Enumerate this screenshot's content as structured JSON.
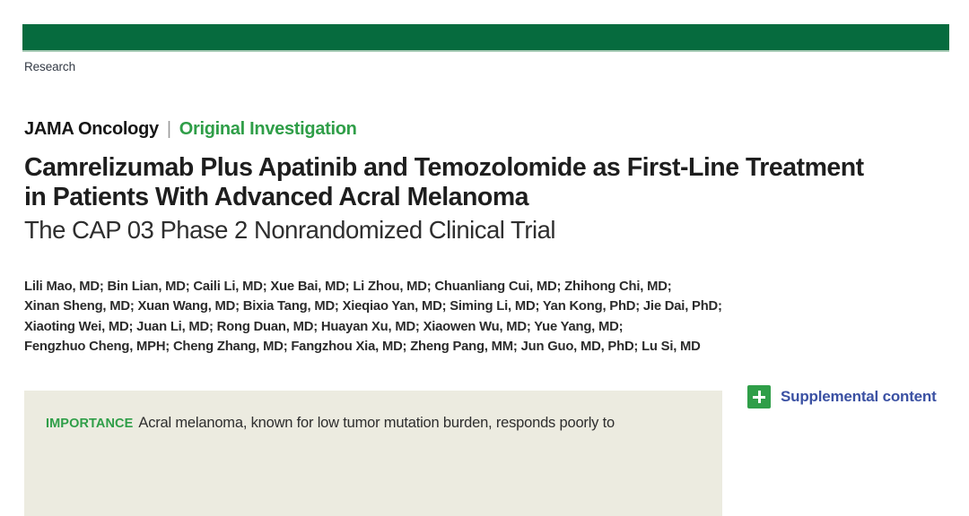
{
  "banner": {
    "section_label": "Research"
  },
  "kicker": {
    "journal": "JAMA Oncology",
    "separator": "|",
    "article_type": "Original Investigation"
  },
  "title": {
    "lines": [
      "Camrelizumab Plus Apatinib and Temozolomide as First-Line Treatment",
      "in Patients With Advanced Acral Melanoma"
    ],
    "subtitle": "The CAP 03 Phase 2 Nonrandomized Clinical Trial"
  },
  "authors": {
    "lines": [
      "Lili Mao, MD; Bin Lian, MD; Caili Li, MD; Xue Bai, MD; Li Zhou, MD; Chuanliang Cui, MD; Zhihong Chi, MD;",
      "Xinan Sheng, MD; Xuan Wang, MD; Bixia Tang, MD; Xieqiao Yan, MD; Siming Li, MD; Yan Kong, PhD; Jie Dai, PhD;",
      "Xiaoting Wei, MD; Juan Li, MD; Rong Duan, MD; Huayan Xu, MD; Xiaowen Wu, MD; Yue Yang, MD;",
      "Fengzhuo Cheng, MPH; Cheng Zhang, MD; Fangzhou Xia, MD; Zheng Pang, MM; Jun Guo, MD, PhD; Lu Si, MD"
    ]
  },
  "abstract": {
    "importance_label": "IMPORTANCE",
    "importance_text": "Acral melanoma, known for low tumor mutation burden, responds poorly to"
  },
  "supplemental": {
    "icon": "plus-icon",
    "label": "Supplemental content"
  },
  "colors": {
    "banner_green": "#066b3e",
    "banner_underline": "#aacdb8",
    "accent_green": "#2f9e48",
    "link_blue": "#3b51a3",
    "abstract_bg": "#ecebe0"
  }
}
